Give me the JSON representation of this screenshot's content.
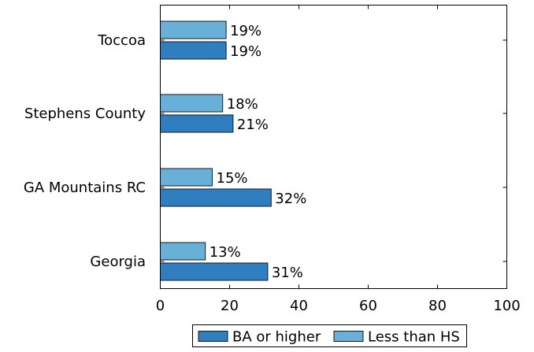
{
  "chart_data": {
    "type": "bar",
    "orientation": "horizontal",
    "categories": [
      "Toccoa",
      "Stephens County",
      "GA Mountains RC",
      "Georgia"
    ],
    "series": [
      {
        "name": "Less than HS",
        "values": [
          19,
          18,
          15,
          13
        ],
        "color": "#69b0d9"
      },
      {
        "name": "BA or higher",
        "values": [
          19,
          21,
          32,
          31
        ],
        "color": "#2f7fc0"
      }
    ],
    "data_labels": {
      "Less than HS": [
        "19%",
        "18%",
        "15%",
        "13%"
      ],
      "BA or higher": [
        "19%",
        "21%",
        "32%",
        "31%"
      ]
    },
    "xlim": [
      0,
      100
    ],
    "xticks": [
      0,
      20,
      40,
      60,
      80,
      100
    ],
    "grid": false,
    "legend": {
      "position": "bottom",
      "entries": [
        "BA or higher",
        "Less than HS"
      ]
    }
  }
}
